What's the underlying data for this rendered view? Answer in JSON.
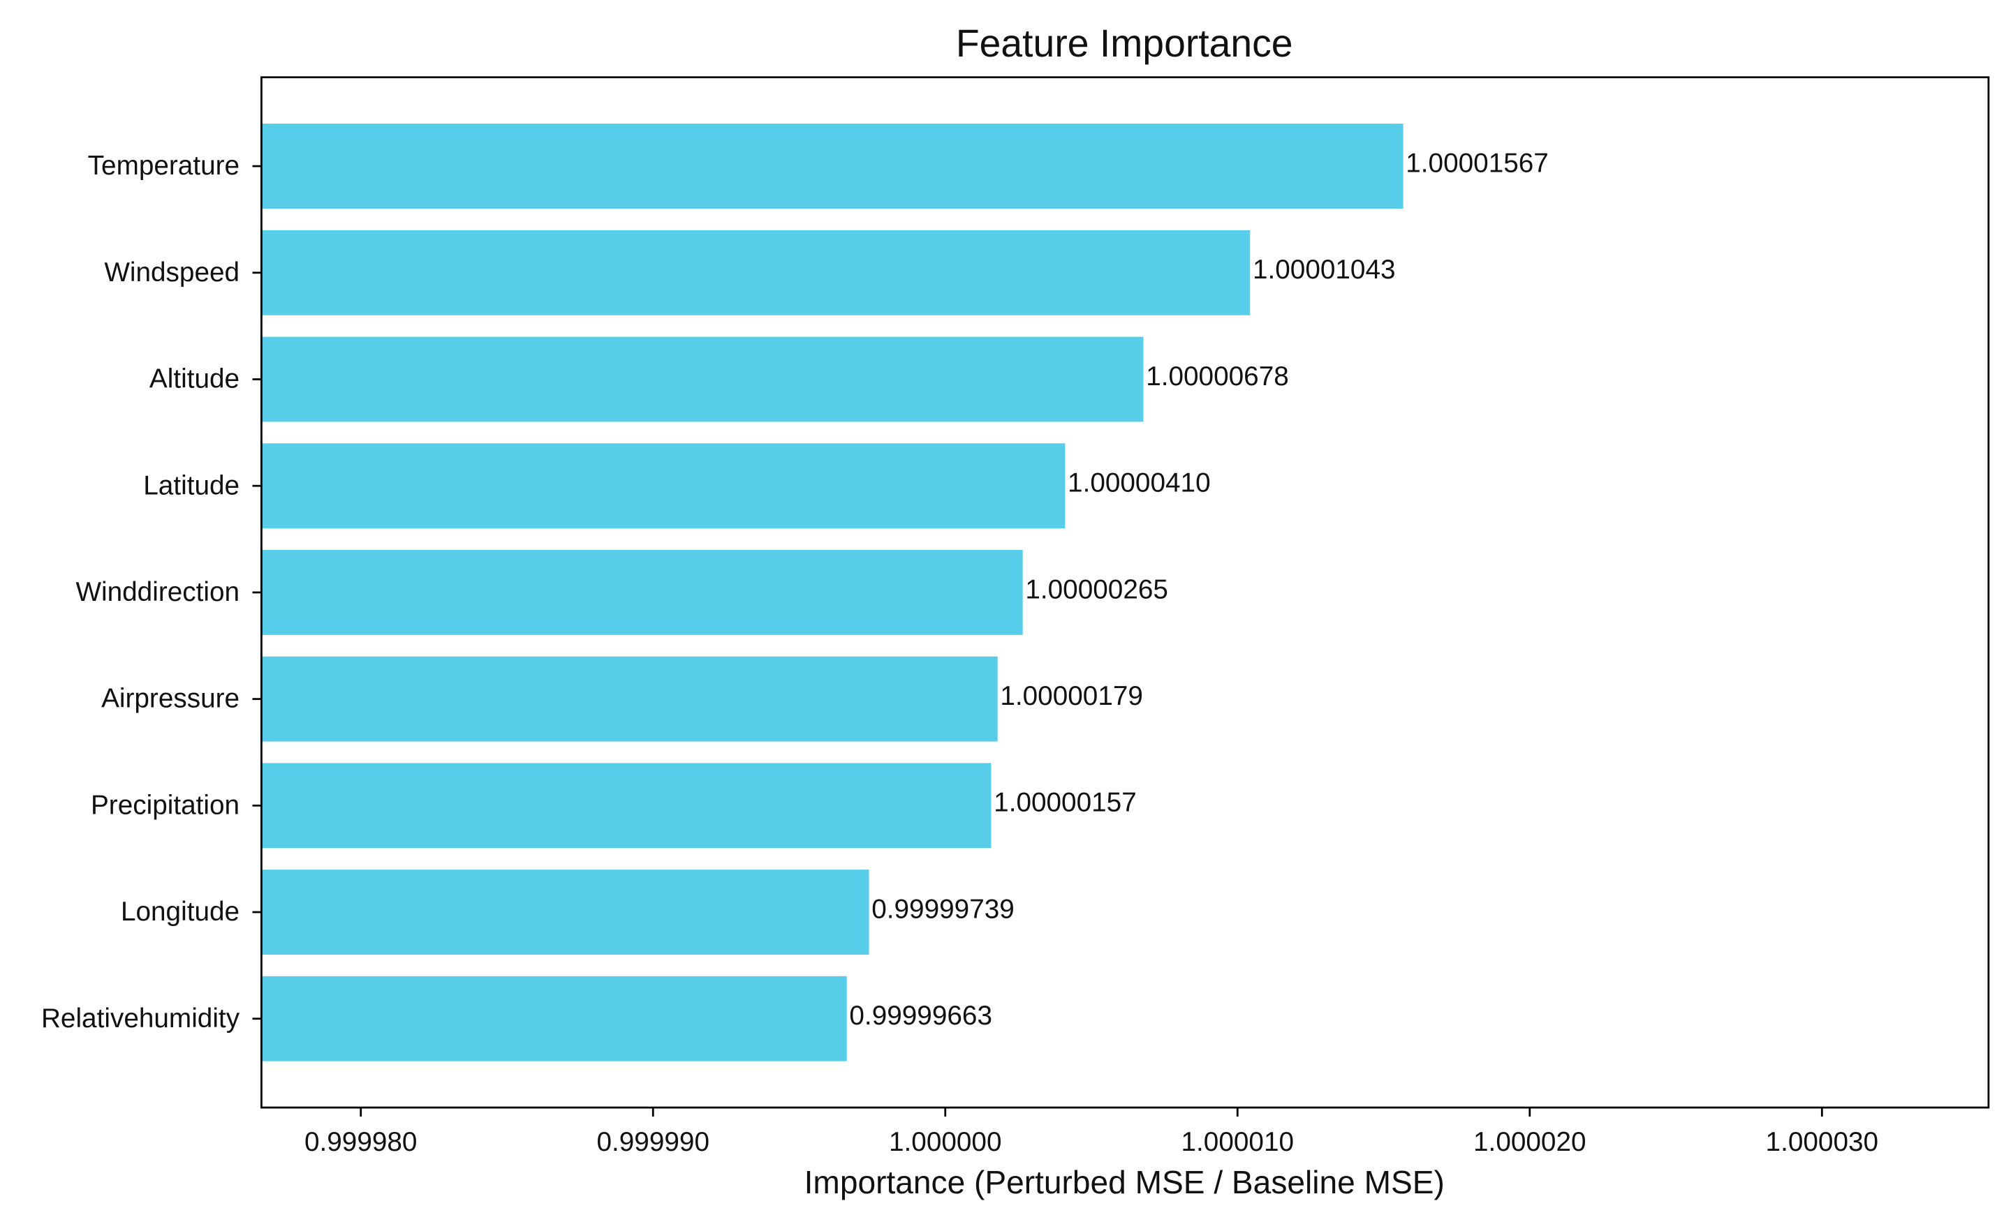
{
  "chart_data": {
    "type": "barh",
    "title": "Feature Importance",
    "xlabel": "Importance (Perturbed MSE / Baseline MSE)",
    "categories": [
      "Temperature",
      "Windspeed",
      "Altitude",
      "Latitude",
      "Winddirection",
      "Airpressure",
      "Precipitation",
      "Longitude",
      "Relativehumidity"
    ],
    "values": [
      1.00001567,
      1.00001043,
      1.00000678,
      1.0000041,
      1.00000265,
      1.00000179,
      1.00000157,
      0.99999739,
      0.99999663
    ],
    "value_labels": [
      "1.00001567",
      "1.00001043",
      "1.00000678",
      "1.00000410",
      "1.00000265",
      "1.00000179",
      "1.00000157",
      "0.99999739",
      "0.99999663"
    ],
    "color": "#57cdea",
    "xlim": [
      0.9999766,
      1.0000357
    ],
    "xticks": [
      {
        "value": 0.99998,
        "label": "0.999980"
      },
      {
        "value": 0.99999,
        "label": "0.999990"
      },
      {
        "value": 1.0,
        "label": "1.000000"
      },
      {
        "value": 1.00001,
        "label": "1.000010"
      },
      {
        "value": 1.00002,
        "label": "1.000020"
      },
      {
        "value": 1.00003,
        "label": "1.000030"
      }
    ],
    "grid": false
  }
}
